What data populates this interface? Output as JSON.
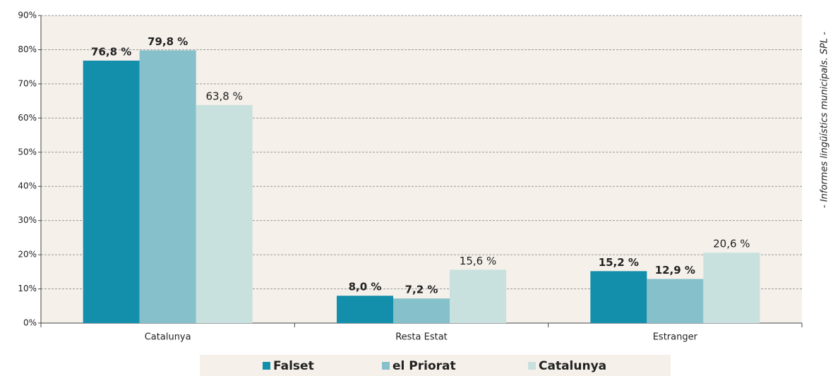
{
  "chart_data": {
    "type": "bar",
    "categories": [
      "Catalunya",
      "Resta Estat",
      "Estranger"
    ],
    "series": [
      {
        "name": "Falset",
        "color": "#138fab",
        "values": [
          76.8,
          8.0,
          15.2
        ],
        "value_labels": [
          "76,8 %",
          "8,0 %",
          "15,2 %"
        ]
      },
      {
        "name": "el Priorat",
        "color": "#85c0cb",
        "values": [
          79.8,
          7.2,
          12.9
        ],
        "value_labels": [
          "79,8 %",
          "7,2 %",
          "12,9 %"
        ]
      },
      {
        "name": "Catalunya",
        "color": "#c8e1df",
        "values": [
          63.8,
          15.6,
          20.6
        ],
        "value_labels": [
          "63,8 %",
          "15,6 %",
          "20,6 %"
        ]
      }
    ],
    "ylim": [
      0,
      90
    ],
    "yticks": [
      {
        "value": 0,
        "label": "0%"
      },
      {
        "value": 10,
        "label": "10%"
      },
      {
        "value": 20,
        "label": "20%"
      },
      {
        "value": 30,
        "label": "30%"
      },
      {
        "value": 40,
        "label": "40%"
      },
      {
        "value": 50,
        "label": "50%"
      },
      {
        "value": 60,
        "label": "60%"
      },
      {
        "value": 70,
        "label": "70%"
      },
      {
        "value": 80,
        "label": "80%"
      },
      {
        "value": 90,
        "label": "90%"
      }
    ],
    "grid": true,
    "legend": "bottom",
    "source": "- Informes lingüístics municipals. SPL -"
  }
}
